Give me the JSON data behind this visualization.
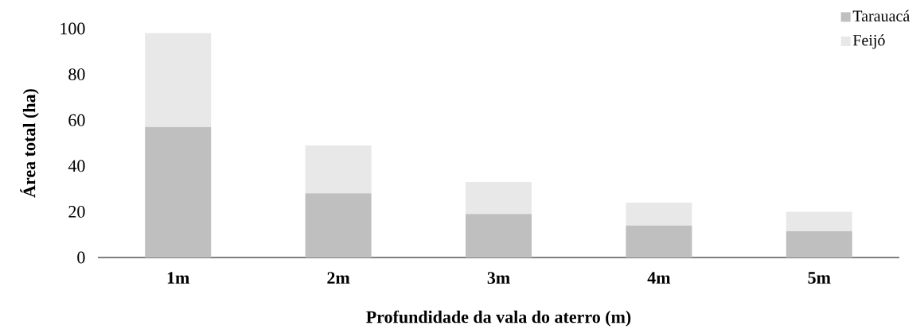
{
  "chart_data": {
    "type": "bar",
    "stacked": true,
    "xlabel": "Profundidade da vala do aterro (m)",
    "ylabel": "Área total (ha)",
    "categories": [
      "1m",
      "2m",
      "3m",
      "4m",
      "5m"
    ],
    "series": [
      {
        "name": "Tarauacá",
        "color": "#bfbfbf",
        "values": [
          57,
          28,
          19,
          14,
          11.5
        ]
      },
      {
        "name": "Feijó",
        "color": "#e8e8e8",
        "values": [
          41,
          21,
          14,
          10,
          8.5
        ]
      }
    ],
    "ylim": [
      0,
      100
    ],
    "yticks": [
      0,
      20,
      40,
      60,
      80,
      100
    ],
    "grid": false,
    "legend": "top right"
  }
}
